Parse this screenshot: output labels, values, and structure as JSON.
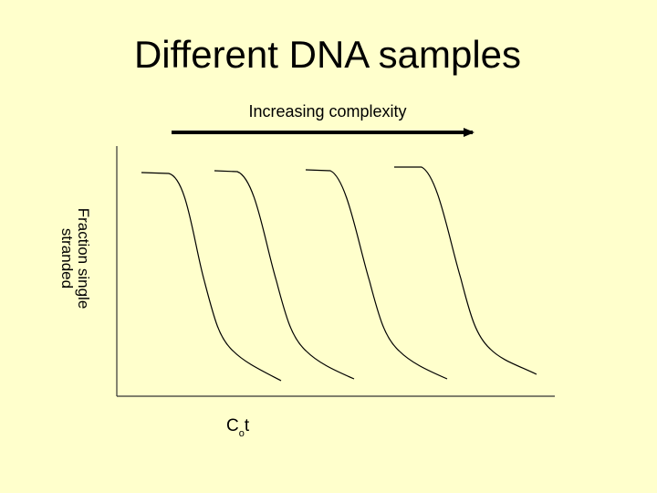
{
  "slide": {
    "title": "Different DNA samples",
    "subtitle": "Increasing complexity",
    "y_label_line1": "Fraction single",
    "y_label_line2": "stranded",
    "x_label_main": "C",
    "x_label_sub": "o",
    "x_label_suffix": "t"
  },
  "colors": {
    "background": "#ffffcc",
    "line": "#000000",
    "axis": "#333333"
  }
}
